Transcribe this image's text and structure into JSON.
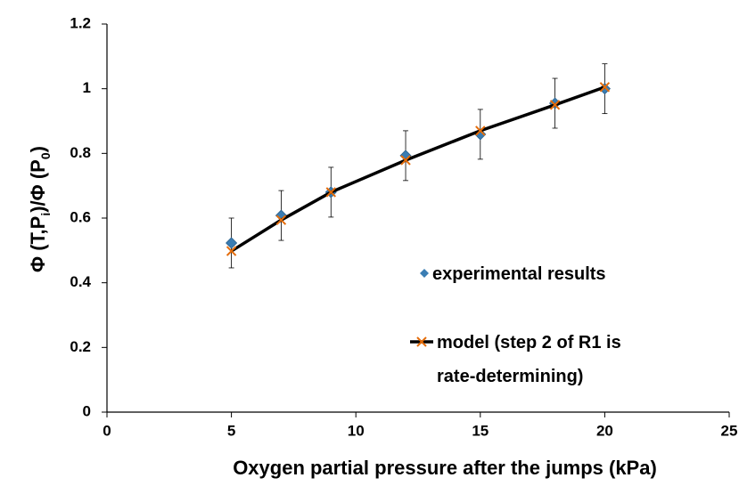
{
  "chart_data": {
    "type": "scatter",
    "xlabel": "Oxygen partial pressure after the jumps (kPa)",
    "ylabel": [
      "Φ (T,P",
      "i",
      ")/Φ (P",
      "0",
      ")"
    ],
    "x": [
      5,
      7,
      9,
      12,
      15,
      18,
      20
    ],
    "series": [
      {
        "name": "experimental results",
        "color": "#3a7db3",
        "style": "markers",
        "values": [
          0.523,
          0.608,
          0.68,
          0.793,
          0.859,
          0.955,
          1.0
        ],
        "errors": [
          0.077,
          0.077,
          0.077,
          0.077,
          0.077,
          0.077,
          0.077
        ]
      },
      {
        "name": "model (step 2 of R1 is rate-determining)",
        "color": "#000000",
        "marker_color": "#e46c0a",
        "style": "line",
        "values": [
          0.498,
          0.594,
          0.68,
          0.779,
          0.87,
          0.95,
          1.005
        ]
      }
    ],
    "xlim": [
      0,
      25
    ],
    "xticks": [
      0,
      5,
      10,
      15,
      20,
      25
    ],
    "ylim": [
      0,
      1.2
    ],
    "yticks": [
      0,
      0.2,
      0.4,
      0.6,
      0.8,
      1,
      1.2
    ],
    "grid": false
  }
}
